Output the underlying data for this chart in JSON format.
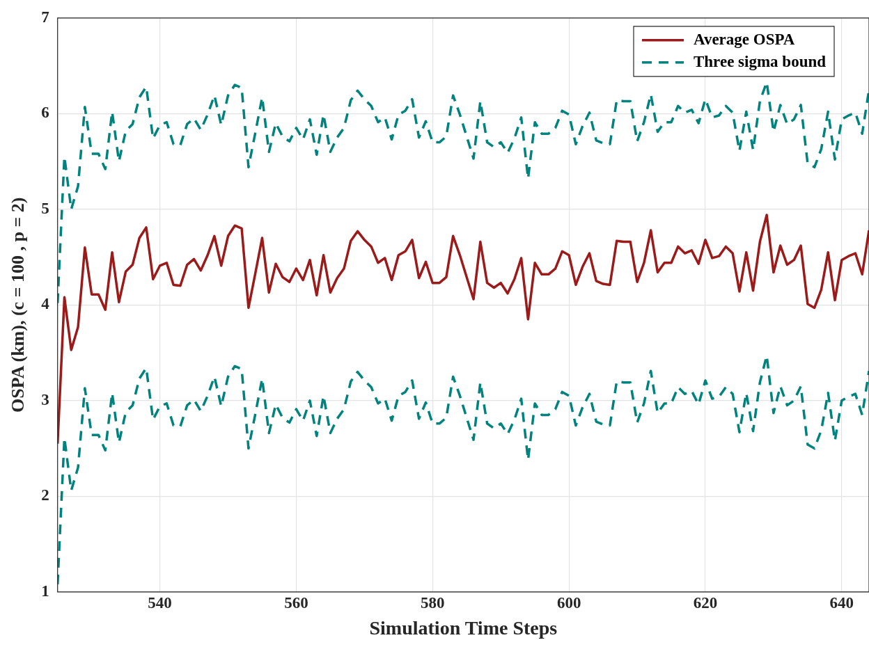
{
  "chart_data": {
    "type": "line",
    "xlabel": "Simulation Time Steps",
    "ylabel": "OSPA (km), (c = 100 , p = 2)",
    "x": [
      525,
      526,
      527,
      528,
      529,
      530,
      531,
      532,
      533,
      534,
      535,
      536,
      537,
      538,
      539,
      540,
      541,
      542,
      543,
      544,
      545,
      546,
      547,
      548,
      549,
      550,
      551,
      552,
      553,
      554,
      555,
      556,
      557,
      558,
      559,
      560,
      561,
      562,
      563,
      564,
      565,
      566,
      567,
      568,
      569,
      570,
      571,
      572,
      573,
      574,
      575,
      576,
      577,
      578,
      579,
      580,
      581,
      582,
      583,
      584,
      585,
      586,
      587,
      588,
      589,
      590,
      591,
      592,
      593,
      594,
      595,
      596,
      597,
      598,
      599,
      600,
      601,
      602,
      603,
      604,
      605,
      606,
      607,
      608,
      609,
      610,
      611,
      612,
      613,
      614,
      615,
      616,
      617,
      618,
      619,
      620,
      621,
      622,
      623,
      624,
      625,
      626,
      627,
      628,
      629,
      630,
      631,
      632,
      633,
      634,
      635,
      636,
      637,
      638,
      639,
      640,
      641,
      642,
      643,
      644
    ],
    "series": [
      {
        "name": "Average OSPA",
        "color": "#9b1a1a",
        "line_style": "solid",
        "values": [
          2.55,
          4.08,
          3.53,
          3.77,
          4.6,
          4.11,
          4.11,
          3.95,
          4.55,
          4.03,
          4.35,
          4.42,
          4.7,
          4.81,
          4.27,
          4.41,
          4.44,
          4.21,
          4.2,
          4.42,
          4.48,
          4.36,
          4.52,
          4.72,
          4.41,
          4.72,
          4.83,
          4.8,
          3.97,
          4.33,
          4.7,
          4.13,
          4.43,
          4.29,
          4.24,
          4.38,
          4.26,
          4.47,
          4.1,
          4.52,
          4.13,
          4.28,
          4.38,
          4.67,
          4.77,
          4.68,
          4.61,
          4.44,
          4.49,
          4.26,
          4.52,
          4.56,
          4.68,
          4.28,
          4.45,
          4.23,
          4.23,
          4.29,
          4.72,
          4.52,
          4.29,
          4.06,
          4.66,
          4.23,
          4.18,
          4.23,
          4.12,
          4.27,
          4.49,
          3.85,
          4.44,
          4.32,
          4.32,
          4.38,
          4.56,
          4.52,
          4.21,
          4.4,
          4.54,
          4.25,
          4.22,
          4.21,
          4.67,
          4.66,
          4.66,
          4.24,
          4.44,
          4.78,
          4.34,
          4.44,
          4.44,
          4.61,
          4.54,
          4.57,
          4.43,
          4.68,
          4.49,
          4.51,
          4.61,
          4.54,
          4.14,
          4.55,
          4.15,
          4.66,
          4.94,
          4.34,
          4.62,
          4.42,
          4.47,
          4.62,
          4.01,
          3.97,
          4.16,
          4.55,
          4.05,
          4.47,
          4.51,
          4.54,
          4.32,
          4.78
        ]
      },
      {
        "name": "Three sigma bound",
        "color": "#00827f",
        "line_style": "dashed",
        "values": [
          4.02,
          5.55,
          5.0,
          5.24,
          6.07,
          5.58,
          5.58,
          5.42,
          6.02,
          5.5,
          5.82,
          5.89,
          6.17,
          6.28,
          5.74,
          5.88,
          5.91,
          5.68,
          5.67,
          5.89,
          5.95,
          5.83,
          5.99,
          6.19,
          5.88,
          6.19,
          6.3,
          6.27,
          5.44,
          5.8,
          6.17,
          5.6,
          5.9,
          5.76,
          5.71,
          5.85,
          5.73,
          5.94,
          5.57,
          5.99,
          5.6,
          5.75,
          5.85,
          6.14,
          6.24,
          6.15,
          6.08,
          5.91,
          5.96,
          5.73,
          5.99,
          6.03,
          6.15,
          5.75,
          5.92,
          5.7,
          5.7,
          5.76,
          6.19,
          5.99,
          5.76,
          5.53,
          6.13,
          5.7,
          5.65,
          5.7,
          5.59,
          5.74,
          5.96,
          5.32,
          5.91,
          5.79,
          5.79,
          5.85,
          6.03,
          5.99,
          5.68,
          5.87,
          6.01,
          5.72,
          5.69,
          5.68,
          6.14,
          6.13,
          6.13,
          5.71,
          5.91,
          6.2,
          5.81,
          5.91,
          5.91,
          6.08,
          6.01,
          6.04,
          5.9,
          6.15,
          5.96,
          5.98,
          6.08,
          6.01,
          5.61,
          6.02,
          5.62,
          6.13,
          6.33,
          5.81,
          6.09,
          5.89,
          5.94,
          6.09,
          5.48,
          5.44,
          5.63,
          6.02,
          5.52,
          5.94,
          5.98,
          6.01,
          5.79,
          6.25
        ]
      },
      {
        "color": "#00827f",
        "line_style": "dashed",
        "values": [
          1.08,
          2.61,
          2.06,
          2.3,
          3.13,
          2.64,
          2.64,
          2.48,
          3.08,
          2.56,
          2.88,
          2.95,
          3.23,
          3.34,
          2.8,
          2.94,
          2.97,
          2.74,
          2.73,
          2.95,
          3.01,
          2.89,
          3.05,
          3.25,
          2.94,
          3.25,
          3.36,
          3.33,
          2.5,
          2.86,
          3.23,
          2.66,
          2.96,
          2.82,
          2.77,
          2.91,
          2.79,
          3.0,
          2.63,
          3.05,
          2.66,
          2.81,
          2.91,
          3.2,
          3.3,
          3.21,
          3.14,
          2.97,
          3.02,
          2.79,
          3.05,
          3.09,
          3.21,
          2.81,
          2.98,
          2.76,
          2.76,
          2.82,
          3.25,
          3.05,
          2.82,
          2.59,
          3.19,
          2.76,
          2.71,
          2.76,
          2.65,
          2.8,
          3.02,
          2.38,
          2.97,
          2.85,
          2.85,
          2.91,
          3.09,
          3.05,
          2.74,
          2.93,
          3.07,
          2.78,
          2.75,
          2.74,
          3.2,
          3.19,
          3.19,
          2.77,
          2.97,
          3.31,
          2.87,
          2.97,
          2.97,
          3.14,
          3.07,
          3.1,
          2.96,
          3.21,
          3.02,
          3.04,
          3.14,
          3.07,
          2.67,
          3.08,
          2.68,
          3.19,
          3.47,
          2.87,
          3.15,
          2.95,
          3.0,
          3.15,
          2.54,
          2.5,
          2.69,
          3.08,
          2.58,
          3.0,
          3.04,
          3.07,
          2.85,
          3.31
        ]
      }
    ],
    "xlim": [
      525,
      644
    ],
    "xticks": [
      540,
      560,
      580,
      600,
      620,
      640
    ],
    "ylim": [
      1,
      7
    ],
    "yticks": [
      1,
      2,
      3,
      4,
      5,
      6,
      7
    ],
    "grid": true,
    "legend": "top right",
    "marker": "none"
  }
}
